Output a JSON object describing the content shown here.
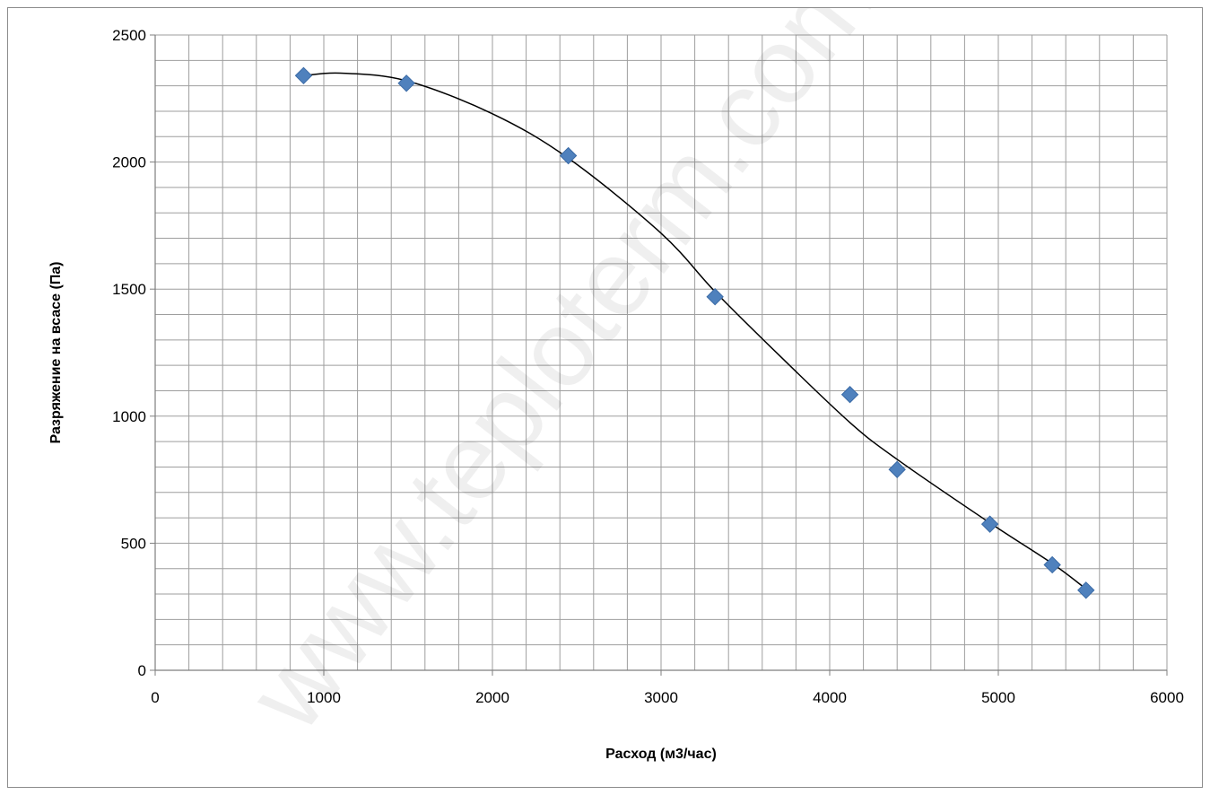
{
  "chart_data": {
    "type": "scatter",
    "title": "",
    "xlabel": "Расход (м3/час)",
    "ylabel": "Разряжение на всасе (Па)",
    "xlim": [
      0,
      6000
    ],
    "ylim": [
      0,
      2500
    ],
    "x_major_ticks": [
      0,
      1000,
      2000,
      3000,
      4000,
      5000,
      6000
    ],
    "y_major_ticks": [
      0,
      500,
      1000,
      1500,
      2000,
      2500
    ],
    "x_tick_labels": [
      "0",
      "1000",
      "2000",
      "3000",
      "4000",
      "5000",
      "6000"
    ],
    "y_tick_labels": [
      "0",
      "500",
      "1000",
      "1500",
      "2000",
      "2500"
    ],
    "x_minor_step": 200,
    "y_minor_step": 100,
    "grid": true,
    "legend": "none",
    "series": [
      {
        "marker": "diamond",
        "color": "#4F81BD",
        "x": [
          880,
          1490,
          2450,
          3320,
          4120,
          4400,
          4950,
          5320,
          5520
        ],
        "y": [
          2340,
          2310,
          2025,
          1470,
          1085,
          790,
          575,
          415,
          315
        ]
      }
    ],
    "trendline": {
      "type": "smooth",
      "color": "#000000",
      "x": [
        880,
        1100,
        1490,
        2000,
        2450,
        3000,
        3320,
        3700,
        4120,
        4400,
        4950,
        5320,
        5520
      ],
      "y": [
        2340,
        2350,
        2320,
        2190,
        2015,
        1720,
        1490,
        1240,
        975,
        830,
        580,
        420,
        320
      ]
    },
    "watermark": "www.teploterm.com"
  }
}
